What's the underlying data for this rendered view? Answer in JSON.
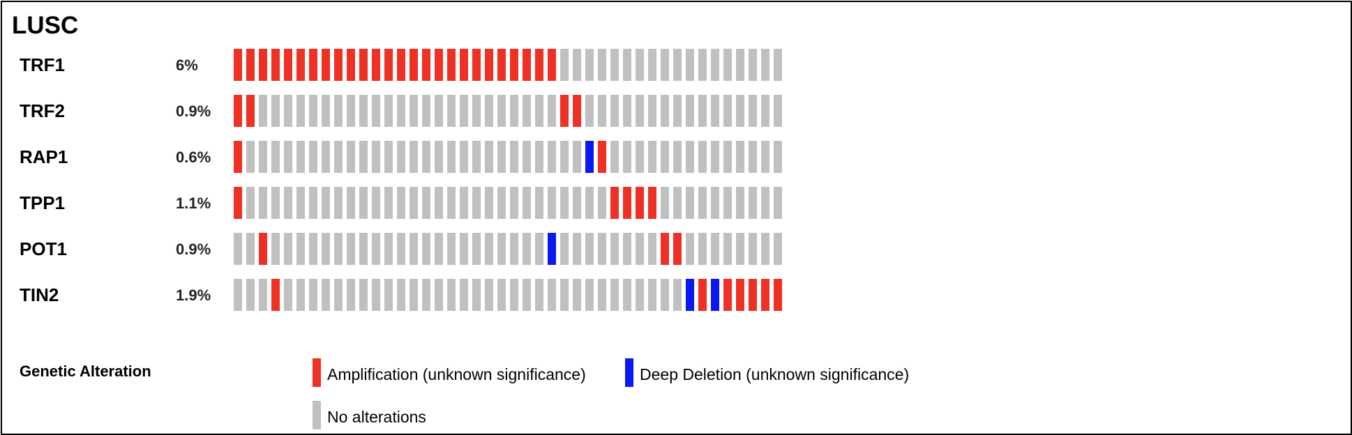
{
  "title": "LUSC",
  "colors": {
    "amplification": "#ee3124",
    "deep_deletion": "#0a19f2",
    "no_alteration": "#c0c0c0"
  },
  "legend": {
    "title": "Genetic Alteration",
    "items": [
      {
        "key": "amplification",
        "label": "Amplification (unknown significance)"
      },
      {
        "key": "deep_deletion",
        "label": "Deep Deletion (unknown significance)"
      },
      {
        "key": "no_alteration",
        "label": "No alterations"
      }
    ]
  },
  "chart_data": {
    "type": "heatmap",
    "title": "LUSC",
    "samples_shown": 44,
    "cell_codes": {
      "A": "amplification",
      "D": "deep_deletion",
      "N": "no_alteration"
    },
    "rows": [
      {
        "gene": "TRF1",
        "percent": "6%",
        "cells": "AAAAAAAAAAAAAAAAAAAAAAAAAANNNNNNNNNNNNNNNNNN"
      },
      {
        "gene": "TRF2",
        "percent": "0.9%",
        "cells": "AANNNNNNNNNNNNNNNNNNNNNNNNAANNNNNNNNNNNNNNNN"
      },
      {
        "gene": "RAP1",
        "percent": "0.6%",
        "cells": "ANNNNNNNNNNNNNNNNNNNNNNNNNNNDANNNNNNNNNNNNNN"
      },
      {
        "gene": "TPP1",
        "percent": "1.1%",
        "cells": "ANNNNNNNNNNNNNNNNNNNNNNNNNNNNNAAAANNNNNNNNNN"
      },
      {
        "gene": "POT1",
        "percent": "0.9%",
        "cells": "NNANNNNNNNNNNNNNNNNNNNNNNDNNNNNNNNAANNNNNNNN"
      },
      {
        "gene": "TIN2",
        "percent": "1.9%",
        "cells": "NNNANNNNNNNNNNNNNNNNNNNNNNNNNNNNNNNNDADAAAAA"
      }
    ]
  }
}
